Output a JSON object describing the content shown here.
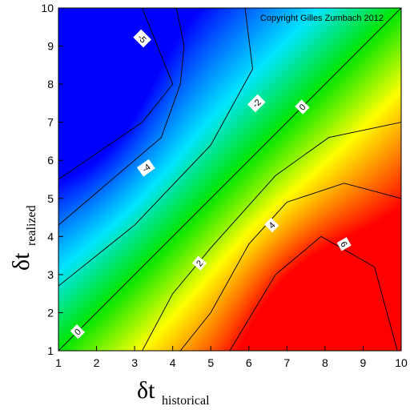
{
  "chart_data": {
    "type": "heatmap",
    "subtype": "filled-contour",
    "title": "",
    "annotation": "Copyright Gilles Zumbach 2012",
    "xlabel": {
      "symbol": "δt",
      "subscript": "historical"
    },
    "ylabel": {
      "symbol": "δt",
      "subscript": "realized"
    },
    "xlim": [
      1,
      10
    ],
    "ylim": [
      1,
      10
    ],
    "xticks": [
      "1",
      "2",
      "3",
      "4",
      "5",
      "6",
      "7",
      "8",
      "9",
      "10"
    ],
    "yticks": [
      "1",
      "2",
      "3",
      "4",
      "5",
      "6",
      "7",
      "8",
      "9",
      "10"
    ],
    "colormap": {
      "low": "#0000ff",
      "mid_low": "#00e5ff",
      "mid": "#00e600",
      "mid_high": "#ffff00",
      "high": "#ff0000"
    },
    "value_range": [
      -7,
      7
    ],
    "minima": [
      {
        "x": 1.5,
        "y": 7.9,
        "value": -7
      }
    ],
    "maxima": [
      {
        "x": 8.0,
        "y": 1.4,
        "value": 7
      }
    ],
    "contours": [
      {
        "level": "-5",
        "points": [
          [
            3.2,
            10
          ],
          [
            4.0,
            8.0
          ],
          [
            3.2,
            7.0
          ],
          [
            1.0,
            5.5
          ]
        ]
      },
      {
        "level": "-4",
        "points": [
          [
            4.1,
            10
          ],
          [
            4.3,
            9.0
          ],
          [
            4.2,
            8.0
          ],
          [
            3.7,
            6.6
          ],
          [
            1.0,
            4.3
          ]
        ]
      },
      {
        "level": "-2",
        "points": [
          [
            5.9,
            10
          ],
          [
            6.1,
            8.4
          ],
          [
            5.0,
            6.4
          ],
          [
            3.0,
            4.3
          ],
          [
            1.0,
            2.7
          ]
        ]
      },
      {
        "level": "0",
        "points": [
          [
            1,
            1
          ],
          [
            10,
            10
          ]
        ]
      },
      {
        "level": "2",
        "points": [
          [
            10,
            7.0
          ],
          [
            8.1,
            6.6
          ],
          [
            6.7,
            5.6
          ],
          [
            5.0,
            3.7
          ],
          [
            4.0,
            2.5
          ],
          [
            3.2,
            1.0
          ]
        ]
      },
      {
        "level": "4",
        "points": [
          [
            10,
            5.0
          ],
          [
            8.5,
            5.4
          ],
          [
            7.0,
            4.9
          ],
          [
            6.0,
            3.8
          ],
          [
            5.0,
            2.0
          ],
          [
            4.2,
            1.0
          ]
        ]
      },
      {
        "level": "6",
        "points": [
          [
            5.5,
            1.0
          ],
          [
            6.7,
            3.0
          ],
          [
            7.9,
            4.0
          ],
          [
            9.3,
            3.2
          ],
          [
            9.9,
            1.0
          ]
        ]
      }
    ],
    "contour_labels": [
      {
        "text": "-5",
        "x": 3.2,
        "y": 9.2,
        "angle": 45
      },
      {
        "text": "-4",
        "x": 3.3,
        "y": 5.8,
        "angle": -35
      },
      {
        "text": "-2",
        "x": 6.2,
        "y": 7.5,
        "angle": -45
      },
      {
        "text": "0",
        "x": 7.4,
        "y": 7.4,
        "angle": -45
      },
      {
        "text": "0",
        "x": 1.5,
        "y": 1.5,
        "angle": -45
      },
      {
        "text": "2",
        "x": 4.7,
        "y": 3.3,
        "angle": -50
      },
      {
        "text": "4",
        "x": 6.6,
        "y": 4.3,
        "angle": -45
      },
      {
        "text": "6",
        "x": 8.5,
        "y": 3.8,
        "angle": 60
      }
    ]
  }
}
